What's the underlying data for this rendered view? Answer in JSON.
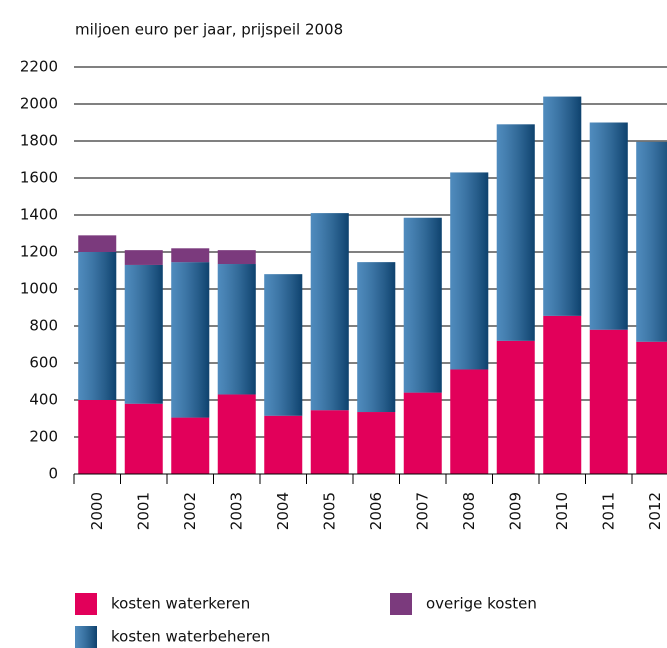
{
  "chart_data": {
    "type": "stacked_bar",
    "title": "miljoen euro per jaar, prijspeil 2008",
    "categories": [
      "2000",
      "2001",
      "2002",
      "2003",
      "2004",
      "2005",
      "2006",
      "2007",
      "2008",
      "2009",
      "2010",
      "2011",
      "2012"
    ],
    "series": [
      {
        "name": "kosten waterkeren",
        "color": "#e2005a",
        "values": [
          400,
          380,
          305,
          430,
          315,
          345,
          335,
          440,
          565,
          720,
          855,
          780,
          715
        ]
      },
      {
        "name": "kosten waterbeheren",
        "color": "#1565a8",
        "values": [
          800,
          750,
          840,
          705,
          765,
          1065,
          810,
          945,
          1065,
          1170,
          1185,
          1120,
          1080
        ]
      },
      {
        "name": "overige kosten",
        "color": "#7b3a7d",
        "values": [
          90,
          80,
          75,
          75,
          0,
          0,
          0,
          0,
          0,
          0,
          0,
          0,
          0
        ]
      }
    ],
    "ylim": [
      0,
      2200
    ],
    "yticks": [
      0,
      200,
      400,
      600,
      800,
      1000,
      1200,
      1400,
      1600,
      1800,
      2000,
      2200
    ],
    "grid": true
  }
}
